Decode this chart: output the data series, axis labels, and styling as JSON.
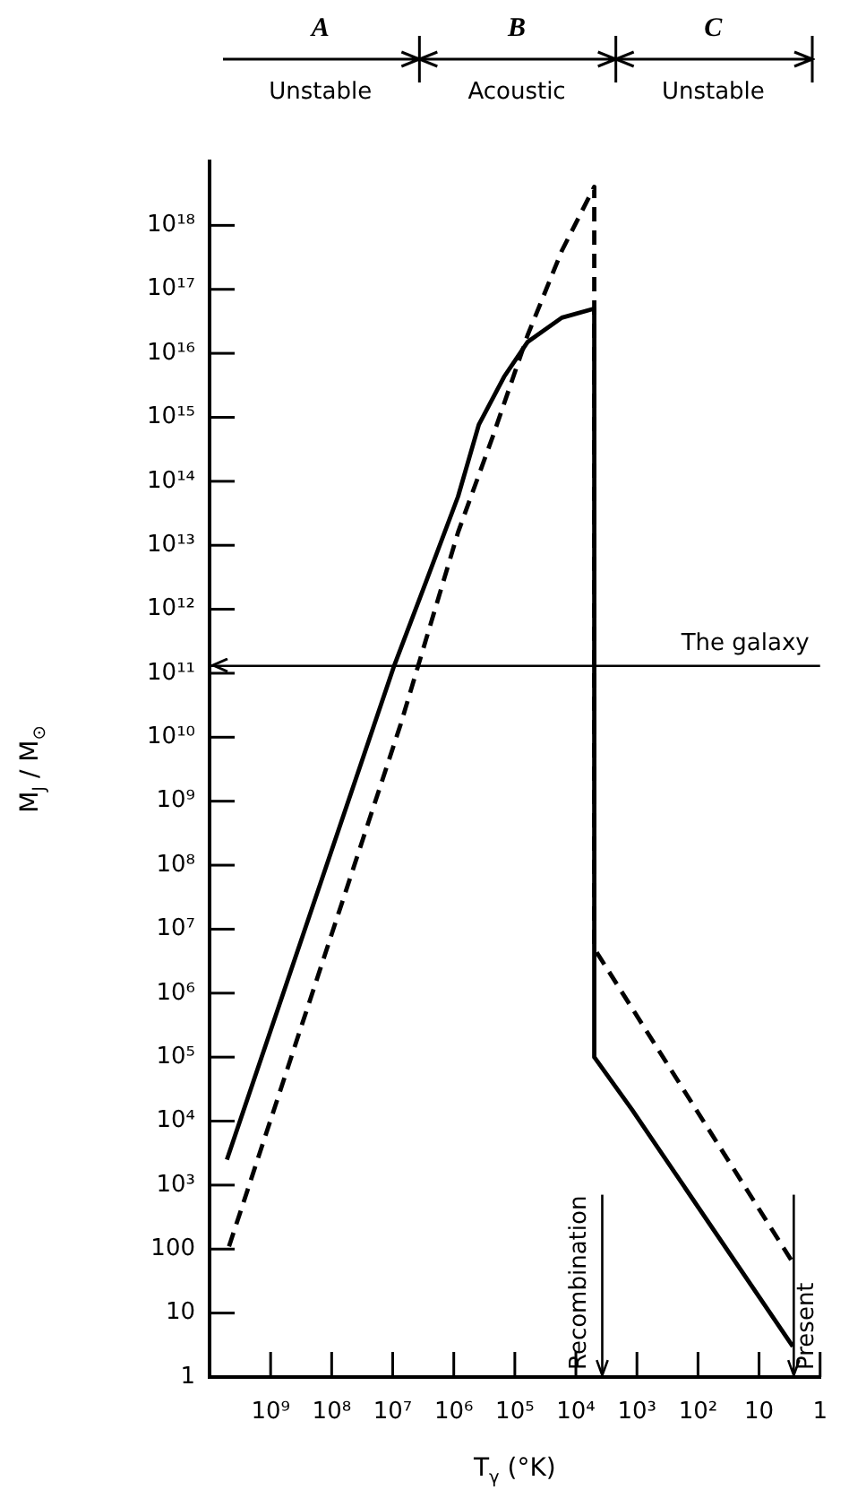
{
  "chart_data": {
    "type": "line",
    "xlabel": "T$_{γ}$ (°K)",
    "ylabel": "M$_{J}$ / M$_{⊙}$",
    "log": "xy",
    "grid": false,
    "legend": false,
    "marker": "none",
    "xlim": [
      10000000000.0,
      1
    ],
    "xticks": [
      {
        "value": 1000000000.0,
        "label": "10⁹"
      },
      {
        "value": 100000000.0,
        "label": "10⁸"
      },
      {
        "value": 10000000.0,
        "label": "10⁷"
      },
      {
        "value": 1000000.0,
        "label": "10⁶"
      },
      {
        "value": 100000.0,
        "label": "10⁵"
      },
      {
        "value": 10000.0,
        "label": "10⁴"
      },
      {
        "value": 1000.0,
        "label": "10³"
      },
      {
        "value": 100,
        "label": "10²"
      },
      10,
      1
    ],
    "ylim": [
      1,
      1e+19
    ],
    "yticks": [
      1,
      10,
      100,
      {
        "value": 1000.0,
        "label": "10³"
      },
      {
        "value": 10000.0,
        "label": "10⁴"
      },
      {
        "value": 100000.0,
        "label": "10⁵"
      },
      {
        "value": 1000000.0,
        "label": "10⁶"
      },
      {
        "value": 10000000.0,
        "label": "10⁷"
      },
      {
        "value": 100000000.0,
        "label": "10⁸"
      },
      {
        "value": 1000000000.0,
        "label": "10⁹"
      },
      {
        "value": 10000000000.0,
        "label": "10¹⁰"
      },
      {
        "value": 100000000000.0,
        "label": "10¹¹"
      },
      {
        "value": 1000000000000.0,
        "label": "10¹²"
      },
      {
        "value": 10000000000000.0,
        "label": "10¹³"
      },
      {
        "value": 100000000000000.0,
        "label": "10¹⁴"
      },
      {
        "value": 1000000000000000.0,
        "label": "10¹⁵"
      },
      {
        "value": 1e+16,
        "label": "10¹⁶"
      },
      {
        "value": 1e+17,
        "label": "10¹⁷"
      },
      {
        "value": 1e+18,
        "label": "10¹⁸"
      }
    ],
    "series": [
      {
        "color": "#000000",
        "line_style": "solid",
        "x": [
          5200000000.0,
          9500000.0,
          2800000.0,
          850000.0,
          390000.0,
          150000.0,
          62000.0,
          17000.0,
          5000,
          5000,
          1200,
          2.8
        ],
        "values": [
          2500,
          130000000000.0,
          2800000000000.0,
          58000000000000.0,
          760000000000000.0,
          4300000000000000.0,
          1.5e+16,
          3.6e+16,
          5e+16,
          100000.0,
          15000.0,
          3
        ]
      },
      {
        "color": "#000000",
        "line_style": "dashed",
        "x": [
          4800000000.0,
          7400000.0,
          850000.0,
          230000.0,
          62000.0,
          17000.0,
          5000,
          5000,
          2.9
        ],
        "values": [
          110,
          16000000000.0,
          16000000000000.0,
          500000000000000.0,
          1.9e+16,
          4e+17,
          4e+18,
          5000000.0,
          65
        ]
      }
    ],
    "ref_lines": [
      {
        "axis": "y",
        "value": 130000000000.0,
        "label": "The galaxy"
      },
      {
        "axis": "x",
        "value": 3700,
        "label": "Recombination"
      },
      {
        "axis": "x",
        "value": 2.7,
        "label": "Present"
      }
    ],
    "annotations": [
      "A",
      "Unstable",
      "B",
      "Acoustic",
      "C",
      "Unstable"
    ]
  }
}
